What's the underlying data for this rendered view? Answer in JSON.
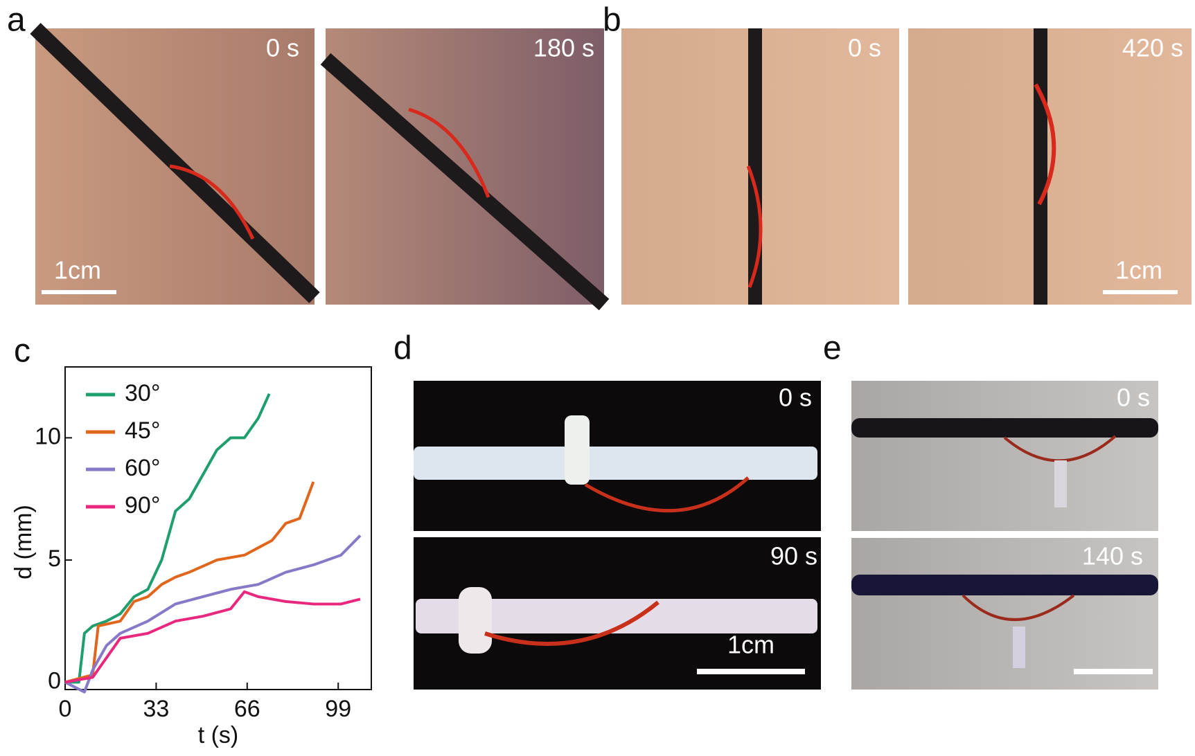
{
  "panels": [
    {
      "label": "a",
      "frames": [
        "0 s",
        "180 s"
      ],
      "scale_bar": "1cm"
    },
    {
      "label": "b",
      "frames": [
        "0 s",
        "420 s"
      ],
      "scale_bar": "1cm"
    },
    {
      "label": "c"
    },
    {
      "label": "d",
      "frames": [
        "0 s",
        "90 s"
      ],
      "scale_bar": "1cm"
    },
    {
      "label": "e",
      "frames": [
        "0 s",
        "140 s"
      ]
    }
  ],
  "chart_data": {
    "type": "line",
    "x_label": "t (s)",
    "y_label": "d (mm)",
    "xlim": [
      0,
      111
    ],
    "xticks": [
      0,
      33,
      66,
      99
    ],
    "ylim": [
      -0.3,
      12.9
    ],
    "yticks": [
      0,
      5,
      10
    ],
    "legend": "upper-left",
    "series": [
      {
        "name": "30°",
        "color": "#1f9e6e",
        "x": [
          0,
          5,
          7,
          10,
          15,
          20,
          25,
          30,
          35,
          40,
          45,
          50,
          55,
          60,
          65,
          70,
          74
        ],
        "values": [
          0,
          0,
          2,
          2.3,
          2.5,
          2.8,
          3.5,
          3.8,
          5,
          7,
          7.5,
          8.5,
          9.5,
          10,
          10,
          10.8,
          11.8
        ]
      },
      {
        "name": "45°",
        "color": "#e0661c",
        "x": [
          0,
          10,
          12,
          20,
          25,
          30,
          35,
          40,
          45,
          55,
          65,
          75,
          80,
          85,
          90
        ],
        "values": [
          0,
          0.3,
          2.3,
          2.5,
          3.3,
          3.5,
          4,
          4.3,
          4.5,
          5,
          5.2,
          5.8,
          6.5,
          6.7,
          8.2
        ]
      },
      {
        "name": "60°",
        "color": "#8878c8",
        "x": [
          0,
          7,
          10,
          15,
          20,
          30,
          40,
          50,
          60,
          70,
          80,
          90,
          100,
          107
        ],
        "values": [
          0,
          -0.4,
          0.5,
          1.5,
          2,
          2.5,
          3.2,
          3.5,
          3.8,
          4,
          4.5,
          4.8,
          5.2,
          6
        ]
      },
      {
        "name": "90°",
        "color": "#e8287f",
        "x": [
          0,
          10,
          15,
          20,
          30,
          40,
          50,
          60,
          65,
          70,
          80,
          90,
          100,
          107
        ],
        "values": [
          0,
          0.2,
          1,
          1.8,
          2,
          2.5,
          2.7,
          3,
          3.7,
          3.5,
          3.3,
          3.2,
          3.2,
          3.4
        ]
      }
    ]
  }
}
